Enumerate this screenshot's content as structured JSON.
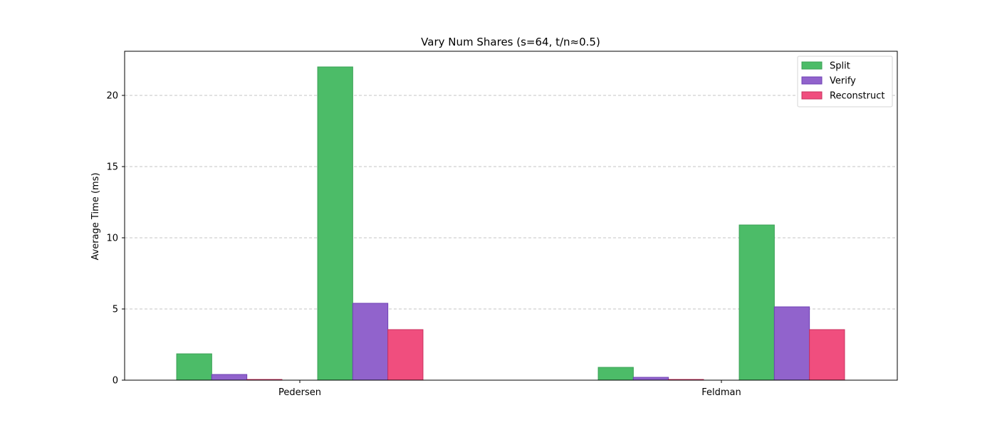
{
  "chart_data": {
    "type": "bar",
    "title": "Vary Num Shares (s=64, t/n≈0.5)",
    "xlabel": "",
    "ylabel": "Average Time (ms)",
    "ylim": [
      0,
      23.1
    ],
    "yticks": [
      0,
      5,
      10,
      15,
      20
    ],
    "grid": "y-dashed",
    "legend_position": "top-right",
    "groups": [
      "Pedersen",
      "Feldman"
    ],
    "clusters_per_group": 2,
    "series": [
      {
        "name": "Split",
        "color": "#4cbc68",
        "edge": "#3aa055",
        "values": [
          [
            1.85,
            22.0
          ],
          [
            0.9,
            10.9
          ]
        ]
      },
      {
        "name": "Verify",
        "color": "#9163cc",
        "edge": "#6e42b5",
        "values": [
          [
            0.4,
            5.4
          ],
          [
            0.2,
            5.15
          ]
        ]
      },
      {
        "name": "Reconstruct",
        "color": "#f04e7e",
        "edge": "#c8305e",
        "values": [
          [
            0.05,
            3.55
          ],
          [
            0.05,
            3.55
          ]
        ]
      }
    ]
  }
}
